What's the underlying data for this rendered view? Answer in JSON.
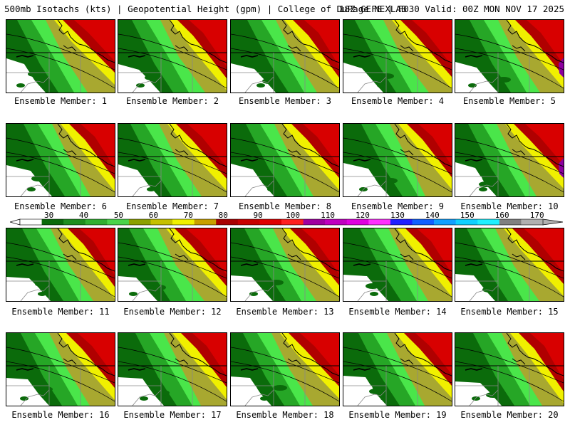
{
  "header": {
    "left": "500mb Isotachs (kts) | Geopotential Height (gpm) | College of DuPage NEXLAB",
    "right": "18Z GEFS | F030 Valid: 00Z MON NOV 17 2025"
  },
  "member_prefix": "Ensemble Member:",
  "members": [
    "1",
    "2",
    "3",
    "4",
    "5",
    "6",
    "7",
    "8",
    "9",
    "10",
    "11",
    "12",
    "13",
    "14",
    "15",
    "16",
    "17",
    "18",
    "19",
    "20"
  ],
  "colorbar": {
    "labels": [
      "30",
      "40",
      "50",
      "60",
      "70",
      "80",
      "90",
      "100",
      "110",
      "120",
      "130",
      "140",
      "150",
      "160",
      "170"
    ],
    "colors": [
      "#ffffff",
      "#0b6b0b",
      "#1e8e1e",
      "#31b031",
      "#4ad44a",
      "#8ca000",
      "#c6c000",
      "#f0f000",
      "#c8a000",
      "#a80000",
      "#c80000",
      "#e00000",
      "#ff2020",
      "#a000a0",
      "#c000c0",
      "#e000e0",
      "#ff30ff",
      "#2020ff",
      "#1060ff",
      "#10a0ff",
      "#10d0ff",
      "#20f0ff",
      "#808080",
      "#b0b0b0"
    ]
  },
  "map_colors": {
    "c30": "#0b6b0b",
    "c40": "#26a626",
    "c50": "#4ae64a",
    "c60": "#a8a830",
    "c70": "#f0f000",
    "c80": "#b00000",
    "c90": "#d80000",
    "c100": "#8c00a0"
  }
}
